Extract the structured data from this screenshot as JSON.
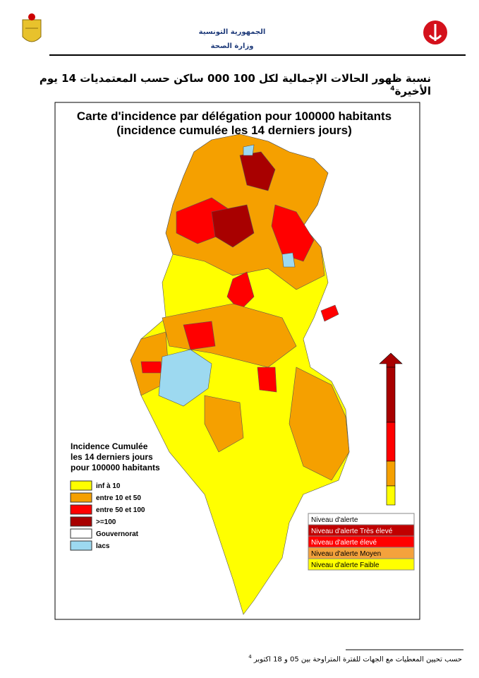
{
  "header": {
    "line1": "الجمهورية التونسية",
    "line2": "وزارة الصحة"
  },
  "heading": {
    "text": "نسبة ظهور الحالات الإجمالية لكل 100 000 ساكن حسب المعتمديات 14 يوم الأخيرة",
    "note": "4"
  },
  "map": {
    "title": [
      "Carte d'incidence par délégation pour 100000 habitants",
      "(incidence cumulée les 14 derniers jours)"
    ],
    "legend": {
      "title": [
        "Incidence Cumulée",
        "les 14 derniers jours",
        "pour 100000 habitants"
      ],
      "items": [
        {
          "label": "inf à 10",
          "color": "#ffff00"
        },
        {
          "label": "entre 10 et 50",
          "color": "#f5a000"
        },
        {
          "label": "entre 50 et 100",
          "color": "#ff0000"
        },
        {
          "label": ">=100",
          "color": "#a80000"
        },
        {
          "label": "Gouvernorat",
          "color": "#ffffff"
        },
        {
          "label": "lacs",
          "color": "#9dd9f0"
        }
      ]
    },
    "alert_table": {
      "header": "Niveau d'alerte",
      "rows": [
        {
          "label": "Niveau d'alerte Très élevé",
          "color": "#c00000"
        },
        {
          "label": "Niveau d'alerte élevé",
          "color": "#ff0000"
        },
        {
          "label": "Niveau d'alerte Moyen",
          "color": "#f4a23c"
        },
        {
          "label": "Niveau d'alerte Faible",
          "color": "#ffff00"
        }
      ]
    }
  },
  "footnote": {
    "note": "4",
    "text": "حسب تحيين المعطيات مع الجهات للفترة المتراوحة بين 05 و 18 اكتوبر"
  }
}
